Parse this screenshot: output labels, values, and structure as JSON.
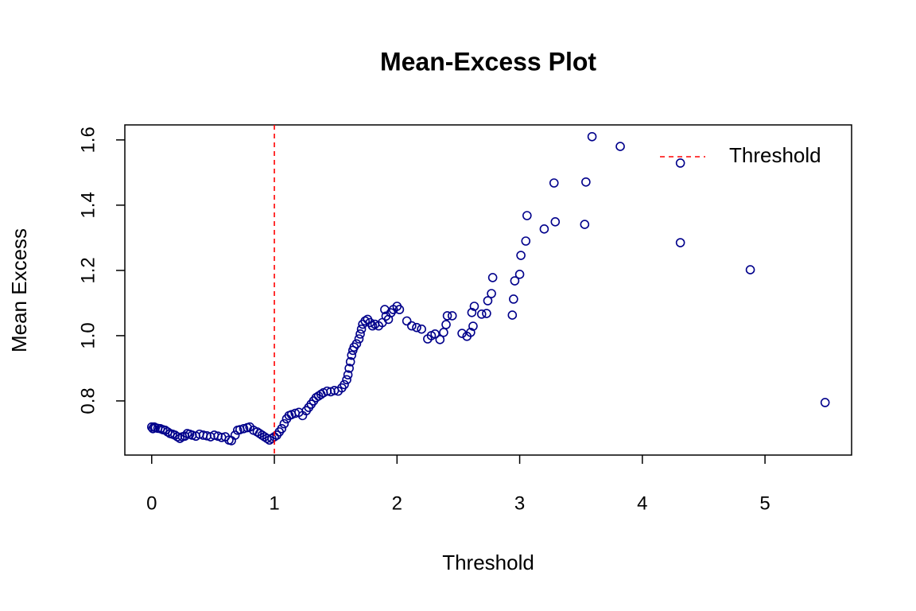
{
  "chart_data": {
    "type": "scatter",
    "title": "Mean-Excess Plot",
    "xlabel": "Threshold",
    "ylabel": "Mean Excess",
    "color": "#00008b",
    "x": [
      0,
      0.01,
      0.02,
      0.03,
      0.05,
      0.07,
      0.09,
      0.11,
      0.13,
      0.15,
      0.17,
      0.19,
      0.21,
      0.23,
      0.25,
      0.27,
      0.29,
      0.31,
      0.33,
      0.36,
      0.39,
      0.42,
      0.45,
      0.48,
      0.51,
      0.54,
      0.57,
      0.6,
      0.63,
      0.65,
      0.68,
      0.7,
      0.72,
      0.75,
      0.78,
      0.8,
      0.83,
      0.86,
      0.88,
      0.9,
      0.92,
      0.94,
      0.96,
      0.98,
      1.0,
      1.02,
      1.04,
      1.06,
      1.08,
      1.1,
      1.12,
      1.14,
      1.17,
      1.2,
      1.23,
      1.26,
      1.28,
      1.3,
      1.32,
      1.34,
      1.36,
      1.38,
      1.4,
      1.43,
      1.46,
      1.49,
      1.52,
      1.55,
      1.57,
      1.59,
      1.6,
      1.61,
      1.62,
      1.63,
      1.64,
      1.65,
      1.67,
      1.69,
      1.7,
      1.71,
      1.72,
      1.74,
      1.76,
      1.78,
      1.8,
      1.82,
      1.85,
      1.88,
      1.9,
      1.91,
      1.93,
      1.95,
      1.97,
      2.0,
      2.02,
      2.08,
      2.12,
      2.16,
      2.2,
      2.25,
      2.28,
      2.31,
      2.35,
      2.38,
      2.4,
      2.41,
      2.45,
      2.53,
      2.57,
      2.6,
      2.62,
      2.61,
      2.63,
      2.69,
      2.73,
      2.74,
      2.77,
      2.78,
      2.94,
      2.95,
      2.96,
      3.0,
      3.01,
      3.05,
      3.06,
      3.2,
      3.28,
      3.29,
      3.53,
      3.54,
      3.59,
      3.82,
      4.31,
      4.31,
      4.88,
      5.49
    ],
    "values": [
      0.72,
      0.715,
      0.72,
      0.718,
      0.716,
      0.715,
      0.712,
      0.71,
      0.705,
      0.7,
      0.698,
      0.695,
      0.69,
      0.685,
      0.69,
      0.692,
      0.7,
      0.698,
      0.695,
      0.692,
      0.698,
      0.695,
      0.693,
      0.69,
      0.695,
      0.692,
      0.688,
      0.69,
      0.68,
      0.678,
      0.695,
      0.71,
      0.712,
      0.715,
      0.718,
      0.72,
      0.71,
      0.705,
      0.7,
      0.695,
      0.69,
      0.685,
      0.68,
      0.685,
      0.69,
      0.695,
      0.705,
      0.715,
      0.73,
      0.745,
      0.755,
      0.758,
      0.762,
      0.765,
      0.755,
      0.77,
      0.78,
      0.79,
      0.8,
      0.81,
      0.815,
      0.82,
      0.825,
      0.83,
      0.828,
      0.832,
      0.83,
      0.84,
      0.85,
      0.865,
      0.88,
      0.9,
      0.92,
      0.94,
      0.955,
      0.965,
      0.975,
      0.99,
      1.005,
      1.02,
      1.035,
      1.045,
      1.05,
      1.04,
      1.03,
      1.035,
      1.03,
      1.04,
      1.08,
      1.06,
      1.05,
      1.07,
      1.08,
      1.09,
      1.08,
      1.045,
      1.03,
      1.025,
      1.02,
      0.99,
      1.0,
      1.005,
      0.988,
      1.01,
      1.034,
      1.061,
      1.061,
      1.007,
      0.998,
      1.01,
      1.029,
      1.071,
      1.09,
      1.066,
      1.068,
      1.107,
      1.129,
      1.178,
      1.063,
      1.112,
      1.168,
      1.188,
      1.246,
      1.29,
      1.368,
      1.327,
      1.468,
      1.349,
      1.341,
      1.471,
      1.61,
      1.58,
      1.529,
      1.285,
      1.202,
      0.795
    ],
    "xlim": [
      -0.219,
      5.706
    ],
    "ylim": [
      0.634,
      1.646
    ],
    "xticks": [
      0,
      1,
      2,
      3,
      4,
      5
    ],
    "yticks": [
      0.8,
      {
        "value": 1,
        "label": "1.0"
      },
      1.2,
      1.4,
      1.6
    ],
    "vline": {
      "name": "Threshold",
      "x": 1,
      "color": "#ff0000"
    },
    "legend": "topright"
  }
}
